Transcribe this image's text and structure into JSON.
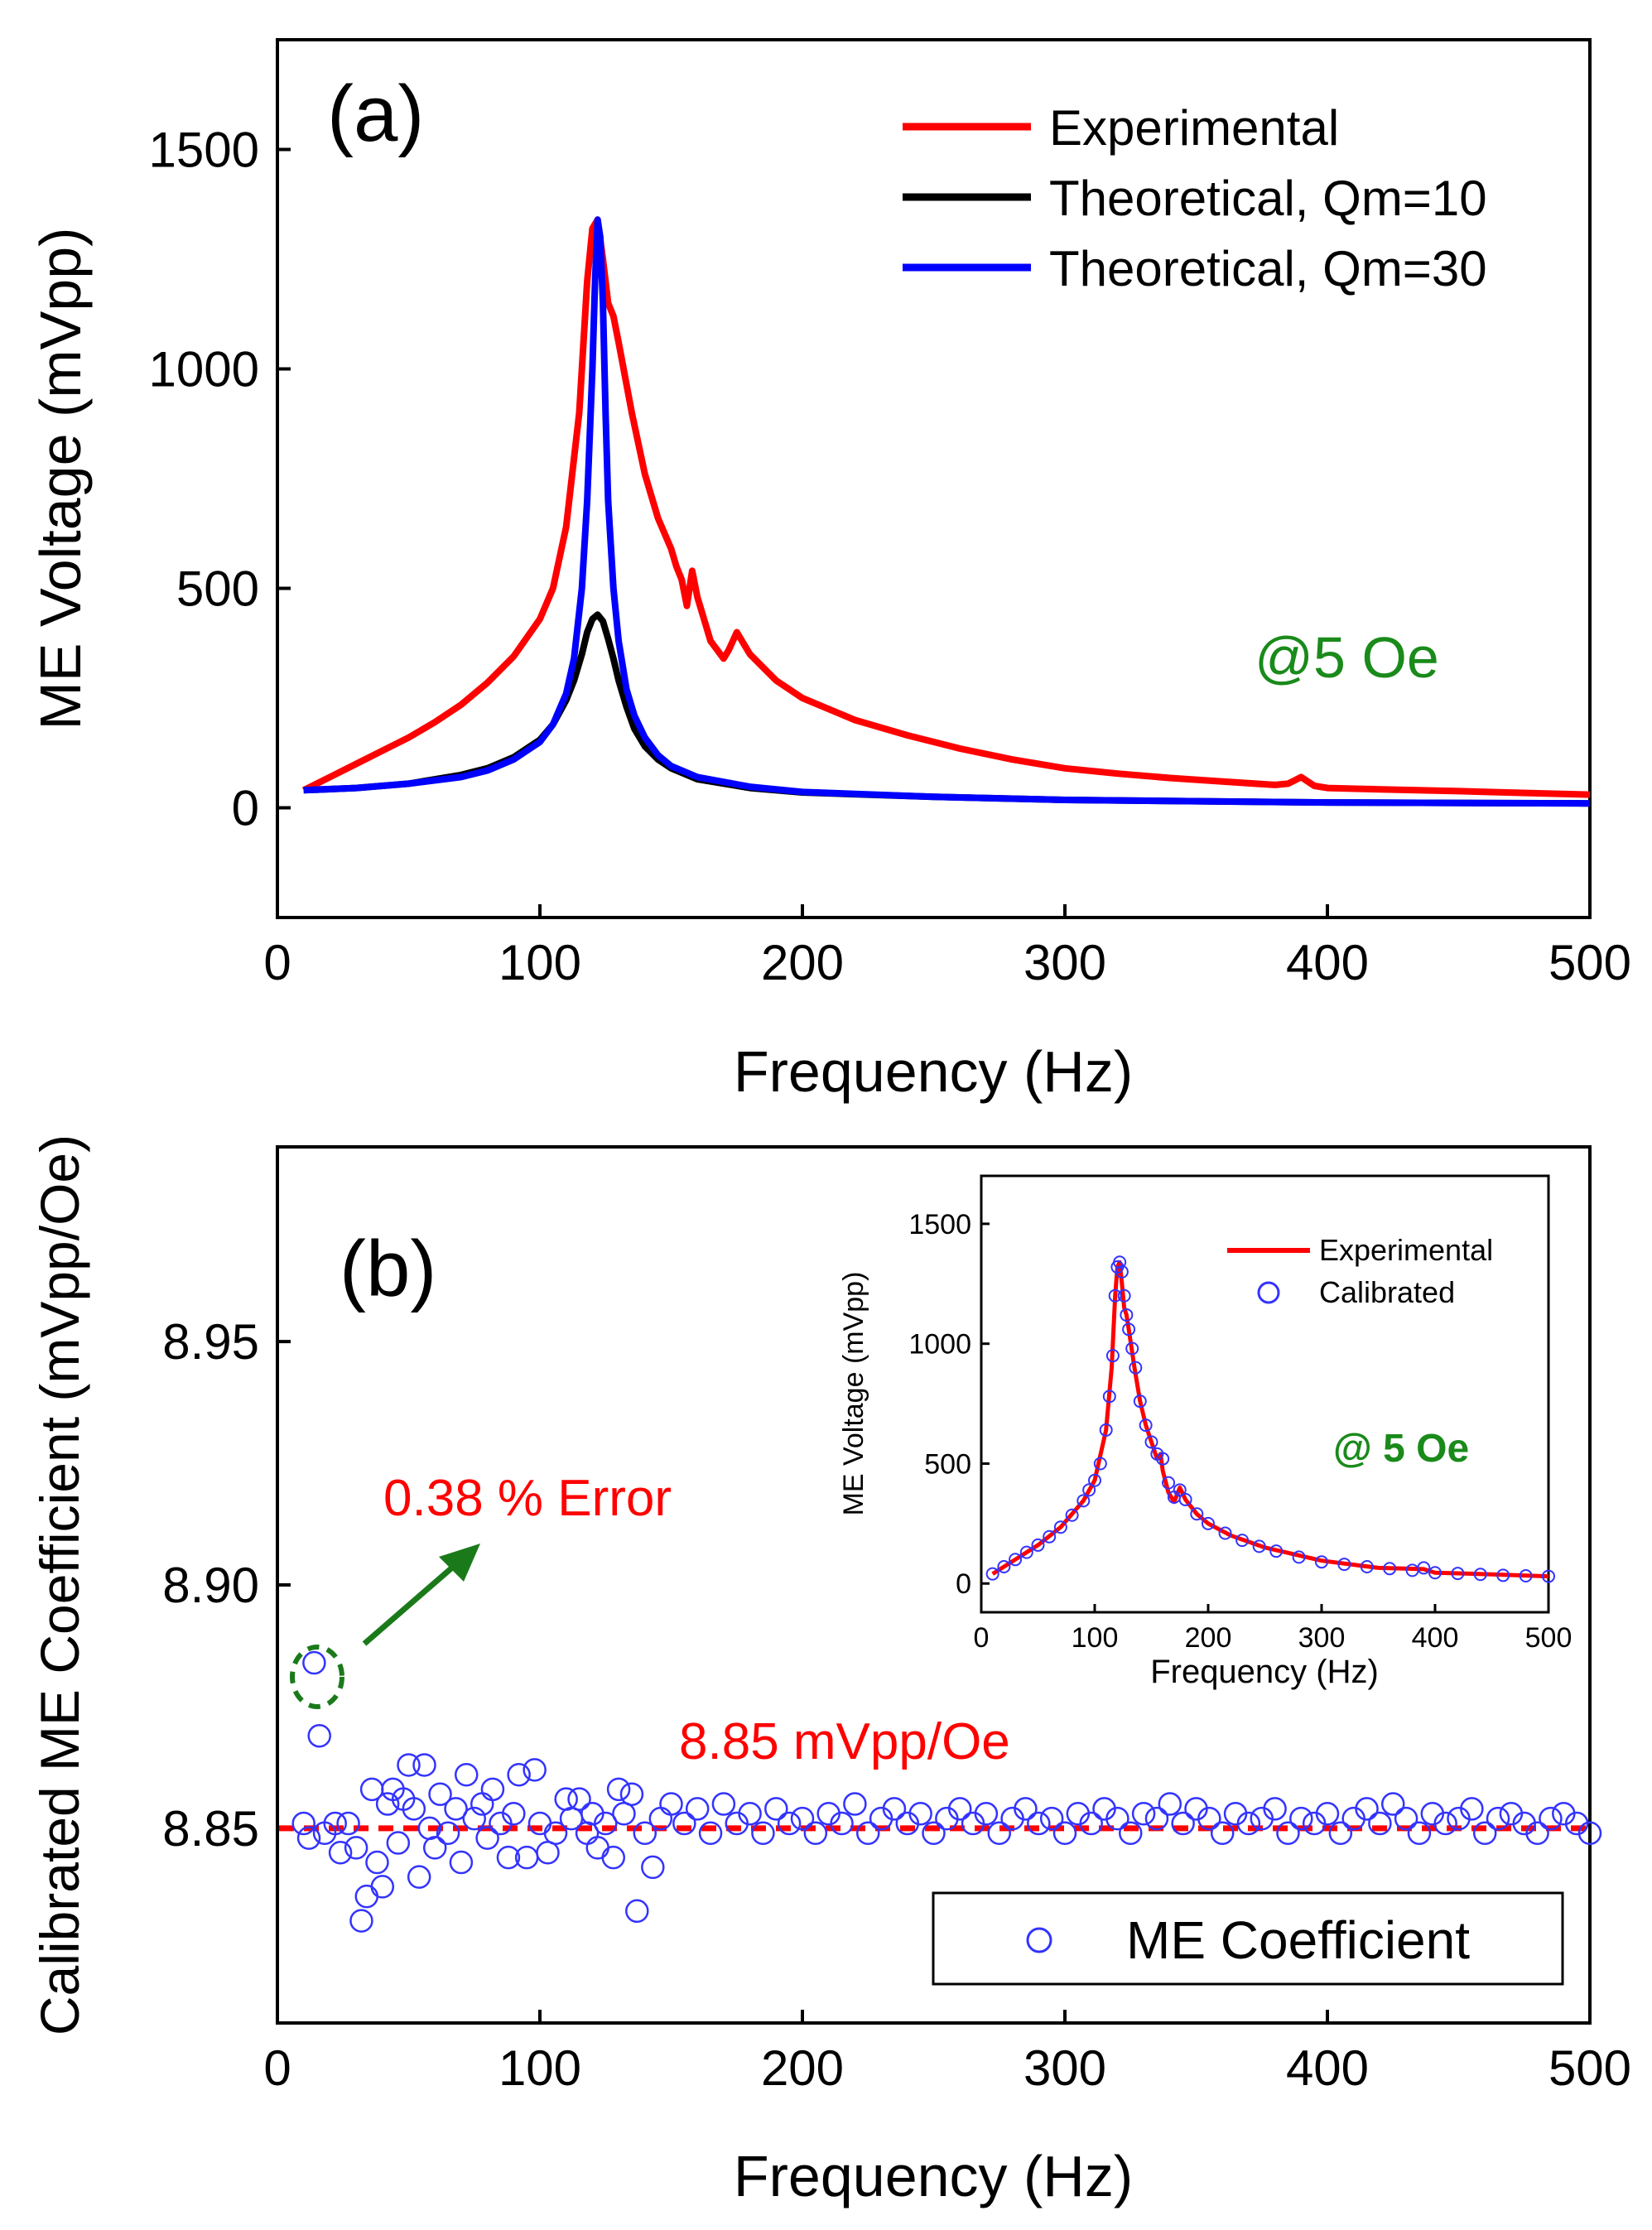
{
  "chart_data": [
    {
      "type": "line",
      "panel_label": "(a)",
      "xlabel": "Frequency (Hz)",
      "ylabel": "ME Voltage (mVpp)",
      "xlim": [
        0,
        500
      ],
      "ylim": [
        -250,
        1750
      ],
      "xticks": [
        0,
        100,
        200,
        300,
        400,
        500
      ],
      "yticks": [
        0,
        500,
        1000,
        1500
      ],
      "annotation": "@5 Oe",
      "legend_position": "top-right",
      "colors": {
        "Experimental": "#ff0000",
        "Theoretical, Qm=10": "#000000",
        "Theoretical, Qm=30": "#0000ff",
        "annotation": "#1a8a1a"
      },
      "series": [
        {
          "name": "Experimental",
          "x": [
            10,
            20,
            30,
            40,
            50,
            60,
            70,
            80,
            90,
            100,
            105,
            110,
            115,
            118,
            120,
            122,
            124,
            126,
            128,
            130,
            135,
            140,
            145,
            150,
            152,
            154,
            156,
            158,
            160,
            165,
            170,
            172,
            175,
            180,
            190,
            200,
            220,
            240,
            260,
            280,
            300,
            320,
            340,
            360,
            380,
            385,
            390,
            395,
            400,
            420,
            450,
            480,
            500
          ],
          "y": [
            40,
            70,
            100,
            130,
            160,
            195,
            235,
            285,
            345,
            430,
            500,
            640,
            900,
            1200,
            1320,
            1340,
            1250,
            1150,
            1120,
            1060,
            900,
            760,
            660,
            590,
            550,
            520,
            460,
            540,
            480,
            380,
            340,
            360,
            400,
            350,
            290,
            250,
            200,
            165,
            135,
            110,
            90,
            78,
            68,
            60,
            52,
            55,
            70,
            50,
            45,
            42,
            38,
            33,
            30
          ]
        },
        {
          "name": "Theoretical, Qm=10",
          "x": [
            10,
            30,
            50,
            70,
            80,
            90,
            100,
            105,
            110,
            113,
            116,
            118,
            120,
            122,
            124,
            126,
            128,
            130,
            133,
            136,
            140,
            145,
            150,
            160,
            180,
            200,
            250,
            300,
            400,
            500
          ],
          "y": [
            40,
            45,
            55,
            75,
            90,
            115,
            155,
            190,
            245,
            290,
            350,
            400,
            430,
            440,
            425,
            385,
            340,
            290,
            230,
            180,
            140,
            110,
            90,
            65,
            45,
            35,
            25,
            18,
            12,
            10
          ]
        },
        {
          "name": "Theoretical, Qm=30",
          "x": [
            10,
            30,
            50,
            70,
            80,
            90,
            100,
            105,
            110,
            113,
            116,
            118,
            120,
            121,
            122,
            123,
            124,
            125,
            126,
            128,
            130,
            133,
            136,
            140,
            145,
            150,
            160,
            180,
            200,
            250,
            300,
            400,
            500
          ],
          "y": [
            40,
            45,
            55,
            70,
            85,
            110,
            150,
            190,
            260,
            340,
            500,
            700,
            1000,
            1200,
            1340,
            1300,
            1150,
            900,
            700,
            500,
            380,
            270,
            210,
            160,
            120,
            95,
            70,
            48,
            36,
            25,
            18,
            12,
            10
          ]
        }
      ]
    },
    {
      "type": "scatter",
      "panel_label": "(b)",
      "xlabel": "Frequency (Hz)",
      "ylabel": "Calibrated ME Coefficient (mVpp/Oe)",
      "xlim": [
        0,
        500
      ],
      "ylim": [
        8.81,
        8.99
      ],
      "xticks": [
        0,
        100,
        200,
        300,
        400,
        500
      ],
      "yticks": [
        8.85,
        8.9,
        8.95
      ],
      "ytick_labels": [
        "8.85",
        "8.90",
        "8.95"
      ],
      "reference_line": {
        "y": 8.85,
        "label": "8.85 mVpp/Oe",
        "style": "dashed",
        "color": "#ff0000"
      },
      "annotation": "0.38 % Error",
      "legend_position": "bottom-right",
      "colors": {
        "ME Coefficient": "#3333ff",
        "annotation": "#ff0000",
        "arrow": "#1a7a1a"
      },
      "series": [
        {
          "name": "ME Coefficient",
          "x": [
            10,
            12,
            14,
            16,
            18,
            22,
            24,
            27,
            30,
            32,
            34,
            36,
            38,
            40,
            42,
            44,
            46,
            48,
            50,
            52,
            54,
            56,
            58,
            60,
            62,
            65,
            68,
            70,
            72,
            75,
            78,
            80,
            82,
            85,
            88,
            90,
            92,
            95,
            98,
            100,
            103,
            106,
            110,
            112,
            115,
            118,
            120,
            122,
            125,
            128,
            130,
            132,
            135,
            137,
            140,
            143,
            146,
            150,
            155,
            160,
            165,
            170,
            175,
            180,
            185,
            190,
            195,
            200,
            205,
            210,
            215,
            220,
            225,
            230,
            235,
            240,
            245,
            250,
            255,
            260,
            265,
            270,
            275,
            280,
            285,
            290,
            295,
            300,
            305,
            310,
            315,
            320,
            325,
            330,
            335,
            340,
            345,
            350,
            355,
            360,
            365,
            370,
            375,
            380,
            385,
            390,
            395,
            400,
            405,
            410,
            415,
            420,
            425,
            430,
            435,
            440,
            445,
            450,
            455,
            460,
            465,
            470,
            475,
            480,
            485,
            490,
            495,
            500
          ],
          "y": [
            8.851,
            8.848,
            8.884,
            8.869,
            8.849,
            8.851,
            8.845,
            8.851,
            8.846,
            8.831,
            8.836,
            8.858,
            8.843,
            8.838,
            8.855,
            8.858,
            8.847,
            8.856,
            8.863,
            8.854,
            8.84,
            8.863,
            8.85,
            8.846,
            8.857,
            8.849,
            8.854,
            8.843,
            8.861,
            8.852,
            8.855,
            8.848,
            8.858,
            8.851,
            8.844,
            8.853,
            8.861,
            8.844,
            8.862,
            8.851,
            8.845,
            8.849,
            8.856,
            8.852,
            8.856,
            8.849,
            8.853,
            8.846,
            8.851,
            8.844,
            8.858,
            8.853,
            8.857,
            8.833,
            8.849,
            8.842,
            8.852,
            8.855,
            8.851,
            8.854,
            8.849,
            8.855,
            8.851,
            8.853,
            8.849,
            8.854,
            8.851,
            8.852,
            8.849,
            8.853,
            8.851,
            8.855,
            8.849,
            8.852,
            8.854,
            8.851,
            8.853,
            8.849,
            8.852,
            8.854,
            8.851,
            8.853,
            8.849,
            8.852,
            8.854,
            8.851,
            8.852,
            8.849,
            8.853,
            8.851,
            8.854,
            8.852,
            8.849,
            8.853,
            8.852,
            8.855,
            8.851,
            8.854,
            8.852,
            8.849,
            8.853,
            8.851,
            8.852,
            8.854,
            8.849,
            8.852,
            8.851,
            8.853,
            8.849,
            8.852,
            8.854,
            8.851,
            8.855,
            8.852,
            8.849,
            8.853,
            8.851,
            8.852,
            8.854,
            8.849,
            8.852,
            8.853,
            8.851,
            8.849,
            8.852,
            8.853,
            8.851,
            8.849
          ]
        }
      ],
      "inset": {
        "type": "line",
        "xlabel": "Frequency (Hz)",
        "ylabel": "ME Voltage (mVpp)",
        "xlim": [
          0,
          500
        ],
        "ylim": [
          -120,
          1700
        ],
        "xticks": [
          0,
          100,
          200,
          300,
          400,
          500
        ],
        "yticks": [
          0,
          500,
          1000,
          1500
        ],
        "annotation": "@ 5 Oe",
        "legend_position": "top-right",
        "series": [
          {
            "name": "Experimental",
            "x": [
              10,
              30,
              50,
              70,
              90,
              100,
              110,
              115,
              118,
              120,
              122,
              124,
              126,
              128,
              130,
              135,
              140,
              145,
              150,
              155,
              158,
              160,
              165,
              170,
              175,
              180,
              190,
              200,
              220,
              250,
              300,
              350,
              390,
              400,
              450,
              500
            ],
            "y": [
              40,
              100,
              160,
              235,
              345,
              430,
              640,
              900,
              1200,
              1320,
              1340,
              1250,
              1150,
              1120,
              1060,
              900,
              760,
              660,
              590,
              520,
              540,
              470,
              380,
              340,
              400,
              350,
              290,
              250,
              200,
              150,
              95,
              65,
              60,
              45,
              38,
              30
            ]
          },
          {
            "name": "Calibrated",
            "x": [
              10,
              20,
              30,
              40,
              50,
              60,
              70,
              80,
              90,
              95,
              100,
              105,
              110,
              113,
              116,
              118,
              120,
              122,
              124,
              126,
              128,
              130,
              133,
              136,
              140,
              145,
              150,
              155,
              160,
              165,
              170,
              175,
              180,
              190,
              200,
              215,
              230,
              245,
              260,
              280,
              300,
              320,
              340,
              360,
              380,
              390,
              400,
              420,
              440,
              460,
              480,
              500
            ],
            "y": [
              40,
              70,
              100,
              130,
              160,
              195,
              235,
              285,
              345,
              390,
              430,
              500,
              640,
              780,
              950,
              1200,
              1320,
              1340,
              1300,
              1200,
              1120,
              1060,
              980,
              900,
              760,
              660,
              590,
              540,
              520,
              420,
              360,
              390,
              350,
              290,
              250,
              210,
              180,
              155,
              135,
              110,
              90,
              80,
              70,
              62,
              55,
              65,
              45,
              42,
              38,
              34,
              32,
              30
            ]
          }
        ]
      }
    }
  ]
}
